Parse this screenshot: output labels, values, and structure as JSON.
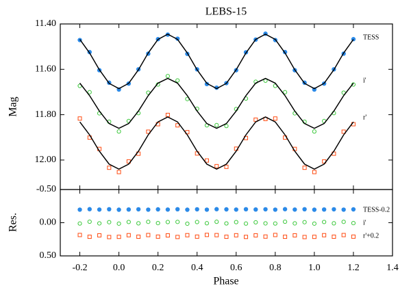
{
  "chart_data": [
    {
      "type": "scatter",
      "title": "LEBS-15",
      "ylabel": "Mag",
      "x": [
        -0.2,
        -0.15,
        -0.1,
        -0.05,
        0,
        0.05,
        0.1,
        0.15,
        0.2,
        0.25,
        0.3,
        0.35,
        0.4,
        0.45,
        0.5,
        0.55,
        0.6,
        0.65,
        0.7,
        0.75,
        0.8,
        0.85,
        0.9,
        0.95,
        1,
        1.05,
        1.1,
        1.15,
        1.2
      ],
      "xlim": [
        -0.3,
        1.4
      ],
      "ylim": [
        12.13,
        11.4
      ],
      "yticks": [
        {
          "value": 11.4,
          "label": "11.40"
        },
        {
          "value": 11.6,
          "label": "11.60"
        },
        {
          "value": 11.8,
          "label": "11.80"
        },
        {
          "value": 12.0,
          "label": "12.00"
        }
      ],
      "model_color": "#000000",
      "series": [
        {
          "name": "TESS",
          "color": "#2b8ae8",
          "marker": "filled-circle",
          "values": [
            11.471,
            11.524,
            11.604,
            11.659,
            11.689,
            11.663,
            11.6,
            11.531,
            11.467,
            11.447,
            11.465,
            11.532,
            11.6,
            11.665,
            11.681,
            11.661,
            11.604,
            11.525,
            11.469,
            11.443,
            11.471,
            11.524,
            11.604,
            11.659,
            11.689,
            11.663,
            11.6,
            11.531,
            11.467
          ],
          "model": [
            11.468,
            11.528,
            11.602,
            11.662,
            11.685,
            11.662,
            11.602,
            11.528,
            11.468,
            11.445,
            11.468,
            11.528,
            11.602,
            11.662,
            11.685,
            11.662,
            11.602,
            11.528,
            11.468,
            11.445,
            11.468,
            11.528,
            11.602,
            11.662,
            11.685,
            11.662,
            11.602,
            11.528,
            11.468
          ]
        },
        {
          "name": "i'",
          "color": "#3cc83c",
          "marker": "open-circle",
          "values": [
            11.673,
            11.701,
            11.794,
            11.831,
            11.874,
            11.828,
            11.793,
            11.703,
            11.667,
            11.63,
            11.649,
            11.731,
            11.774,
            11.847,
            11.846,
            11.85,
            11.775,
            11.729,
            11.655,
            11.65,
            11.673,
            11.701,
            11.794,
            11.831,
            11.874,
            11.828,
            11.793,
            11.703,
            11.667
          ],
          "model": [
            11.661,
            11.716,
            11.784,
            11.839,
            11.86,
            11.839,
            11.784,
            11.716,
            11.661,
            11.64,
            11.661,
            11.716,
            11.784,
            11.839,
            11.86,
            11.839,
            11.784,
            11.716,
            11.661,
            11.64,
            11.661,
            11.716,
            11.784,
            11.839,
            11.86,
            11.839,
            11.784,
            11.716,
            11.661
          ]
        },
        {
          "name": "r'",
          "color": "#ff4a10",
          "marker": "open-square",
          "values": [
            11.817,
            11.901,
            11.951,
            12.034,
            12.053,
            12.006,
            11.972,
            11.875,
            11.842,
            11.801,
            11.847,
            11.877,
            11.971,
            12.002,
            12.027,
            12.03,
            11.95,
            11.903,
            11.822,
            11.819,
            11.817,
            11.901,
            11.951,
            12.034,
            12.053,
            12.006,
            11.972,
            11.875,
            11.842
          ],
          "model": [
            11.832,
            11.889,
            11.961,
            12.018,
            12.04,
            12.018,
            11.961,
            11.889,
            11.832,
            11.81,
            11.832,
            11.889,
            11.961,
            12.018,
            12.04,
            12.018,
            11.961,
            11.889,
            11.832,
            11.81,
            11.832,
            11.889,
            11.961,
            12.018,
            12.04,
            12.018,
            11.961,
            11.889,
            11.832
          ]
        }
      ]
    },
    {
      "type": "scatter",
      "ylabel": "Res.",
      "xlabel": "Phase",
      "x": [
        -0.2,
        -0.15,
        -0.1,
        -0.05,
        0,
        0.05,
        0.1,
        0.15,
        0.2,
        0.25,
        0.3,
        0.35,
        0.4,
        0.45,
        0.5,
        0.55,
        0.6,
        0.65,
        0.7,
        0.75,
        0.8,
        0.85,
        0.9,
        0.95,
        1,
        1.05,
        1.1,
        1.15,
        1.2
      ],
      "xlim": [
        -0.3,
        1.4
      ],
      "ylim": [
        0.5,
        -0.5
      ],
      "xticks": [
        -0.2,
        {
          "value": 0,
          "label": "0.0"
        },
        0.2,
        0.4,
        0.6,
        0.8,
        {
          "value": 1,
          "label": "1.0"
        },
        1.2,
        1.4
      ],
      "yticks": [
        {
          "value": -0.5,
          "label": "-0.50"
        },
        {
          "value": 0,
          "label": "0.00"
        },
        {
          "value": 0.5,
          "label": "0.50"
        }
      ],
      "series": [
        {
          "name": "TESS-0.2",
          "color": "#2b8ae8",
          "marker": "filled-circle",
          "values": [
            -0.197,
            -0.204,
            -0.198,
            -0.203,
            -0.196,
            -0.199,
            -0.202,
            -0.197,
            -0.201,
            -0.198,
            -0.203,
            -0.196,
            -0.202,
            -0.197,
            -0.204,
            -0.201,
            -0.198,
            -0.203,
            -0.199,
            -0.202,
            -0.197,
            -0.204,
            -0.198,
            -0.203,
            -0.196,
            -0.199,
            -0.202,
            -0.197,
            -0.201
          ]
        },
        {
          "name": "i'",
          "color": "#3cc83c",
          "marker": "open-circle",
          "values": [
            0.012,
            -0.015,
            0.01,
            -0.008,
            0.014,
            -0.011,
            0.009,
            -0.013,
            0.006,
            -0.01,
            -0.012,
            0.015,
            -0.01,
            0.008,
            -0.014,
            0.011,
            -0.009,
            0.013,
            -0.006,
            0.01,
            0.012,
            -0.015,
            0.01,
            -0.008,
            0.014,
            -0.011,
            0.009,
            -0.013,
            0.006
          ]
        },
        {
          "name": "r'+0.2",
          "color": "#ff4a10",
          "marker": "open-square",
          "values": [
            0.185,
            0.212,
            0.19,
            0.216,
            0.213,
            0.188,
            0.211,
            0.186,
            0.21,
            0.191,
            0.215,
            0.188,
            0.21,
            0.184,
            0.187,
            0.212,
            0.189,
            0.214,
            0.19,
            0.209,
            0.185,
            0.212,
            0.19,
            0.216,
            0.213,
            0.188,
            0.211,
            0.186,
            0.21
          ]
        }
      ]
    }
  ]
}
